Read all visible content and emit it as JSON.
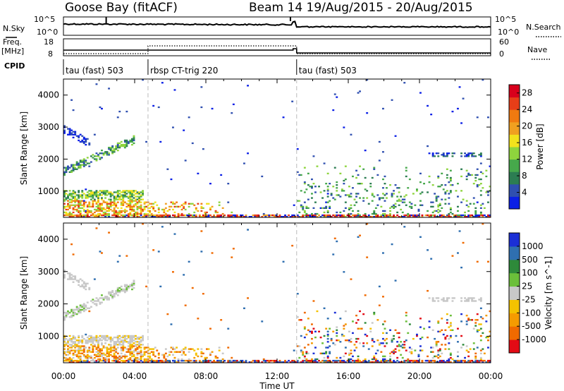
{
  "header": {
    "station": "Goose Bay (fitACF)",
    "beam_info": "Beam 14 19/Aug/2015 - 20/Aug/2015"
  },
  "panels": {
    "nsky": {
      "left_label": "N.Sky",
      "right_label": "N.Search",
      "left_ticks": [
        "10^5",
        "10^0"
      ],
      "right_ticks": [
        "10^5",
        "10^0"
      ]
    },
    "freq": {
      "left_label": "Freq.",
      "left_unit": "[MHz]",
      "right_label": "Nave",
      "left_ticks": [
        "18",
        "8"
      ],
      "right_ticks": [
        "60",
        "0"
      ]
    },
    "cpid": {
      "label": "CPID",
      "segments": [
        {
          "name": "tau (fast) 503",
          "start_h": 0.0,
          "end_h": 4.75
        },
        {
          "name": "rbsp CT-trig 220",
          "start_h": 4.75,
          "end_h": 13.1
        },
        {
          "name": "tau (fast) 503",
          "start_h": 13.1,
          "end_h": 24.0
        }
      ]
    }
  },
  "colors": {
    "power": [
      "#0a1fe6",
      "#2f4fb0",
      "#2c7d52",
      "#46a84b",
      "#8ed43d",
      "#f2e21c",
      "#f0a020",
      "#f07a10",
      "#e73e18",
      "#d8001c"
    ],
    "velocity": [
      "#e30b15",
      "#f06a00",
      "#f59b00",
      "#f4c200",
      "#c8c8c8",
      "#6bbf3a",
      "#2e8a3a",
      "#2f6fb0",
      "#1b2fd6"
    ]
  },
  "chart_data": [
    {
      "type": "heatmap",
      "name": "power",
      "ylabel": "Slant Range [km]",
      "x_range_h": [
        0,
        24
      ],
      "ylim": [
        180,
        4500
      ],
      "y_ticks": [
        1000,
        2000,
        3000,
        4000
      ],
      "x_tick_labels": [
        "00:00",
        "04:00",
        "08:00",
        "12:00",
        "16:00",
        "20:00",
        "00:00"
      ],
      "colorbar": {
        "label": "Power [dB]",
        "ticks": [
          4,
          8,
          12,
          16,
          20,
          24,
          28
        ],
        "range": [
          0,
          30
        ]
      },
      "markers_h": [
        4.75,
        13.1
      ]
    },
    {
      "type": "heatmap",
      "name": "velocity",
      "ylabel": "Slant Range [km]",
      "xlabel": "Time UT",
      "x_range_h": [
        0,
        24
      ],
      "ylim": [
        180,
        4500
      ],
      "y_ticks": [
        1000,
        2000,
        3000,
        4000
      ],
      "x_tick_labels": [
        "00:00",
        "04:00",
        "08:00",
        "12:00",
        "16:00",
        "20:00",
        "00:00"
      ],
      "colorbar": {
        "label": "Velocity [m s^-1]",
        "ticks": [
          "1000",
          "500",
          "100",
          "25",
          "-25",
          "-100",
          "-500",
          "-1000"
        ]
      },
      "markers_h": [
        4.75,
        13.1
      ]
    }
  ]
}
